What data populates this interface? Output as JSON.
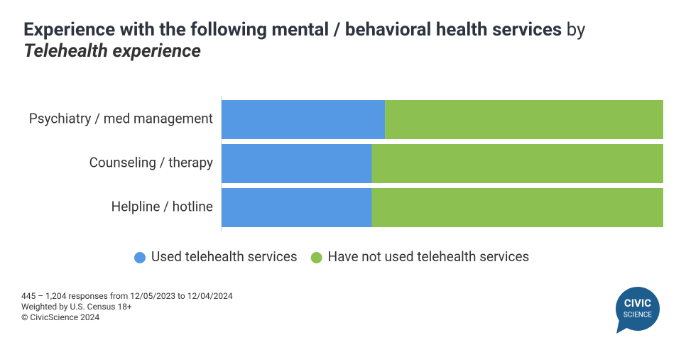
{
  "chart_data": {
    "type": "stacked_bar_horizontal",
    "title": "Experience with the following mental / behavioral health services",
    "title_connector": "by",
    "subtitle": "Telehealth experience",
    "categories": [
      "Psychiatry / med management",
      "Counseling / therapy",
      "Helpline / hotline"
    ],
    "series": [
      {
        "name": "Used telehealth services",
        "color": "#5599e5",
        "values": [
          37,
          34,
          34
        ]
      },
      {
        "name": "Have not used telehealth services",
        "color": "#8cc152",
        "values": [
          63,
          66,
          66
        ]
      }
    ],
    "xlim": [
      0,
      100
    ],
    "footer": [
      "445 – 1,204 responses from 12/05/2023 to 12/04/2024",
      "Weighted by U.S. Census 18+",
      "© CivicScience 2024"
    ],
    "logo": [
      "CIVIC",
      "SCIENCE"
    ]
  }
}
